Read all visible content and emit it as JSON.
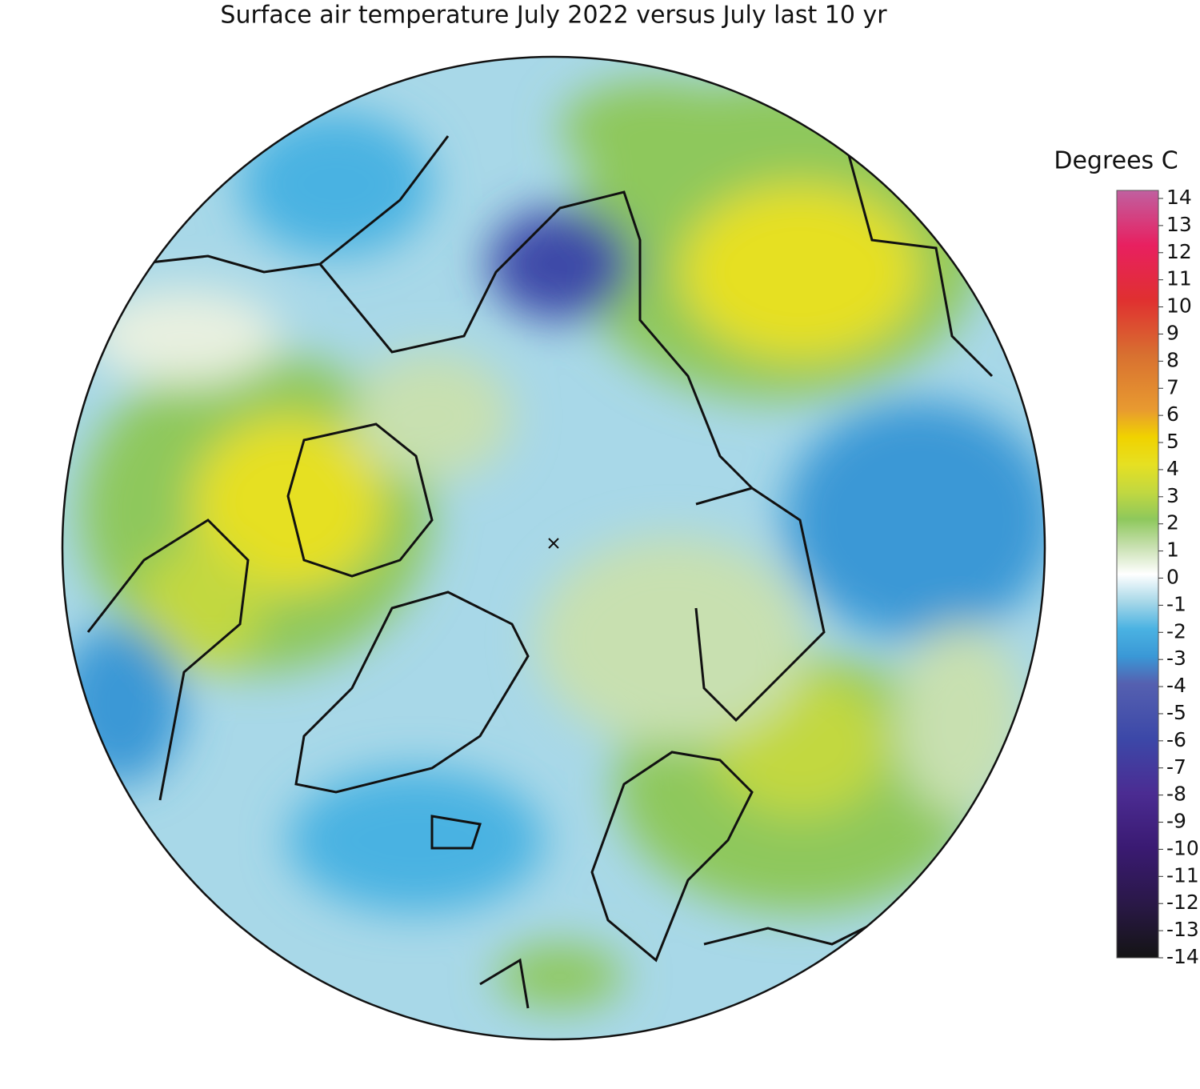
{
  "title": "Surface air temperature July 2022 versus July last 10 yr",
  "colorbar": {
    "label": "Degrees C",
    "clim": [
      -14,
      14
    ],
    "ticks": [
      14,
      13,
      12,
      11,
      10,
      9,
      8,
      7,
      6,
      5,
      4,
      3,
      2,
      1,
      0,
      -1,
      -2,
      -3,
      -4,
      -5,
      -6,
      -7,
      -8,
      -9,
      -10,
      -11,
      -12,
      -13,
      -14
    ],
    "colorscale": [
      {
        "value": -14,
        "color": "#141414"
      },
      {
        "value": -12,
        "color": "#2a1848"
      },
      {
        "value": -10,
        "color": "#3a1a72"
      },
      {
        "value": -8,
        "color": "#4b2c92"
      },
      {
        "value": -6,
        "color": "#3c48a8"
      },
      {
        "value": -4,
        "color": "#5560b0"
      },
      {
        "value": -3,
        "color": "#3a98d6"
      },
      {
        "value": -2,
        "color": "#4ab2e2"
      },
      {
        "value": -1,
        "color": "#a8d8e8"
      },
      {
        "value": 0,
        "color": "#ffffff"
      },
      {
        "value": 1,
        "color": "#c8e0b0"
      },
      {
        "value": 2,
        "color": "#8ec85c"
      },
      {
        "value": 3,
        "color": "#c2d840"
      },
      {
        "value": 4,
        "color": "#e6e022"
      },
      {
        "value": 5,
        "color": "#f0d200"
      },
      {
        "value": 6,
        "color": "#e89a30"
      },
      {
        "value": 8,
        "color": "#d87030"
      },
      {
        "value": 10,
        "color": "#e03030"
      },
      {
        "value": 12,
        "color": "#e82060"
      },
      {
        "value": 14,
        "color": "#c060a0"
      }
    ]
  }
}
